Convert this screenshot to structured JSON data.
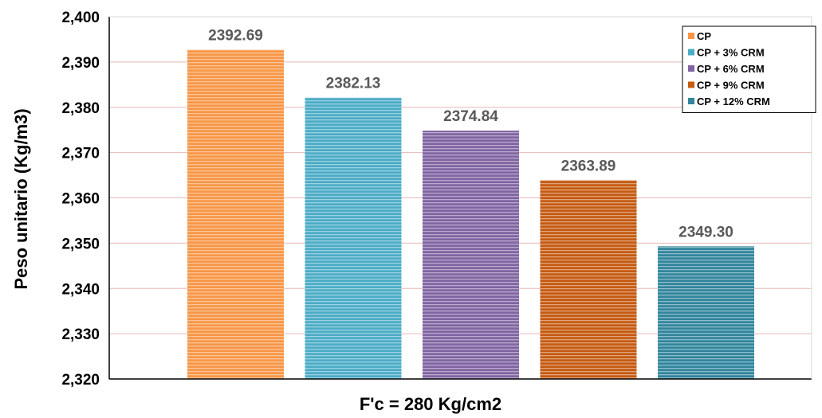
{
  "chart_data": {
    "type": "bar",
    "title": "",
    "xlabel": "F'c = 280 Kg/cm2",
    "ylabel": "Peso unitario (Kg/m3)",
    "ylim": [
      2320,
      2400
    ],
    "yticks": [
      2320,
      2330,
      2340,
      2350,
      2360,
      2370,
      2380,
      2390,
      2400
    ],
    "ytick_labels": [
      "2,320",
      "2,330",
      "2,340",
      "2,350",
      "2,360",
      "2,370",
      "2,380",
      "2,390",
      "2,400"
    ],
    "grid": true,
    "legend_position": "top-right",
    "series": [
      {
        "name": "CP",
        "value": 2392.69,
        "label": "2392.69",
        "color": "#f79646"
      },
      {
        "name": "CP + 3% CRM",
        "value": 2382.13,
        "label": "2382.13",
        "color": "#4bacc6"
      },
      {
        "name": "CP + 6% CRM",
        "value": 2374.84,
        "label": "2374.84",
        "color": "#8064a2"
      },
      {
        "name": "CP + 9% CRM",
        "value": 2363.89,
        "label": "2363.89",
        "color": "#c55a11"
      },
      {
        "name": "CP + 12% CRM",
        "value": 2349.3,
        "label": "2349.30",
        "color": "#31859c"
      }
    ]
  }
}
